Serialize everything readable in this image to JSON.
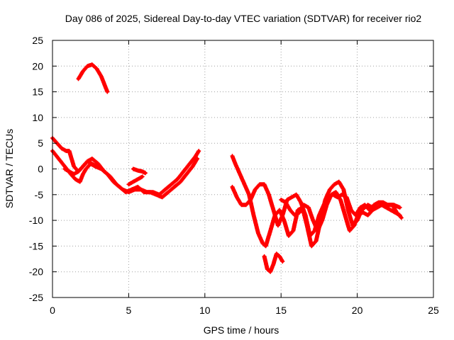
{
  "chart_data": {
    "type": "scatter",
    "title": "Day 086 of 2025, Sidereal Day-to-day VTEC variation (SDTVAR) for receiver rio2",
    "xlabel": "GPS time / hours",
    "ylabel": "SDTVAR / TECUs",
    "xlim": [
      0,
      25
    ],
    "ylim": [
      -25,
      25
    ],
    "xticks": [
      0,
      5,
      10,
      15,
      20,
      25
    ],
    "yticks": [
      -25,
      -20,
      -15,
      -10,
      -5,
      0,
      5,
      10,
      15,
      20,
      25
    ],
    "grid": true,
    "marker": "+",
    "color": "#ff0000",
    "series": [
      {
        "name": "trace-a",
        "x": [
          1.7,
          2.0,
          2.3,
          2.6,
          2.9,
          3.2,
          3.4,
          3.6
        ],
        "y": [
          17.5,
          19.0,
          20.0,
          20.3,
          19.5,
          18.0,
          16.5,
          15.0
        ]
      },
      {
        "name": "trace-b",
        "x": [
          0.0,
          0.3,
          0.6,
          0.9,
          1.1,
          1.4,
          1.7,
          2.0,
          2.3,
          2.6,
          3.0,
          3.4,
          3.8,
          4.2,
          4.6,
          5.0,
          5.4,
          5.8,
          6.2,
          6.6,
          7.0,
          7.4,
          7.8,
          8.2,
          8.6,
          9.0,
          9.4,
          9.6
        ],
        "y": [
          6.0,
          5.0,
          4.0,
          3.5,
          3.5,
          0.5,
          -0.5,
          0.5,
          1.5,
          2.0,
          1.0,
          -0.5,
          -1.5,
          -3.0,
          -4.0,
          -4.5,
          -4.0,
          -4.0,
          -4.5,
          -4.5,
          -5.0,
          -4.0,
          -3.0,
          -2.0,
          -0.5,
          1.0,
          2.5,
          3.5
        ]
      },
      {
        "name": "trace-c",
        "x": [
          0.0,
          0.4,
          0.8,
          1.2,
          1.5,
          1.8,
          2.0,
          2.2,
          2.5,
          2.8,
          3.2,
          3.6,
          4.0,
          4.4,
          4.8,
          5.2,
          5.6,
          6.0,
          6.4,
          6.8,
          7.2,
          7.6,
          8.0,
          8.4,
          8.8,
          9.2,
          9.5
        ],
        "y": [
          3.5,
          2.0,
          0.5,
          -1.0,
          -2.0,
          -2.5,
          -1.0,
          0.0,
          1.0,
          0.5,
          0.0,
          -1.0,
          -2.5,
          -3.5,
          -4.5,
          -4.0,
          -3.5,
          -4.5,
          -4.5,
          -5.0,
          -5.5,
          -4.5,
          -3.5,
          -2.5,
          -1.0,
          0.5,
          2.0
        ]
      },
      {
        "name": "trace-d",
        "x": [
          0.8,
          1.1,
          1.4,
          1.7,
          2.0,
          2.3,
          2.6,
          2.9
        ],
        "y": [
          0.0,
          -0.5,
          -1.0,
          -0.5,
          0.5,
          1.5,
          1.0,
          0.5
        ]
      },
      {
        "name": "trace-e",
        "x": [
          5.0,
          5.3,
          5.6,
          5.9
        ],
        "y": [
          -3.0,
          -2.5,
          -2.0,
          -1.5
        ]
      },
      {
        "name": "trace-f",
        "x": [
          5.3,
          5.6,
          5.9,
          6.1
        ],
        "y": [
          0.0,
          -0.3,
          -0.5,
          -0.8
        ]
      },
      {
        "name": "trace-g",
        "x": [
          11.8,
          12.0,
          12.3,
          12.6,
          12.9,
          13.2,
          13.5,
          13.8,
          14.0,
          14.3,
          14.6,
          14.9,
          15.2,
          15.5,
          15.8,
          16.1,
          16.4,
          16.7,
          17.0,
          17.3,
          17.6,
          17.9,
          18.2,
          18.5,
          18.8,
          19.1,
          19.4,
          19.7,
          20.0,
          20.3,
          20.7,
          21.0,
          21.3,
          21.6,
          22.0,
          22.4,
          22.8
        ],
        "y": [
          2.5,
          1.0,
          -1.0,
          -3.0,
          -5.0,
          -9.0,
          -12.5,
          -14.5,
          -15.0,
          -12.0,
          -9.0,
          -8.0,
          -10.0,
          -13.0,
          -12.0,
          -8.0,
          -7.5,
          -11.0,
          -15.0,
          -14.0,
          -10.0,
          -6.0,
          -4.0,
          -3.0,
          -2.5,
          -4.0,
          -8.0,
          -11.0,
          -10.0,
          -8.0,
          -7.0,
          -7.5,
          -7.5,
          -7.0,
          -7.0,
          -7.0,
          -7.5
        ]
      },
      {
        "name": "trace-h",
        "x": [
          11.8,
          12.1,
          12.4,
          12.7,
          13.0,
          13.3,
          13.6,
          13.9,
          14.2,
          14.5,
          14.8,
          15.1,
          15.4,
          15.7,
          16.0,
          16.3,
          16.6,
          16.9,
          17.2,
          17.5,
          17.8,
          18.1,
          18.4,
          18.7,
          19.0,
          19.3,
          19.6,
          19.9,
          20.2,
          20.5,
          20.8,
          21.1,
          21.4,
          21.7,
          22.0,
          22.3,
          22.6,
          22.9
        ],
        "y": [
          -3.5,
          -5.5,
          -7.0,
          -7.0,
          -6.0,
          -4.0,
          -3.0,
          -3.0,
          -5.0,
          -8.0,
          -11.0,
          -9.0,
          -6.0,
          -5.5,
          -5.0,
          -6.5,
          -9.0,
          -13.0,
          -12.0,
          -9.0,
          -7.0,
          -5.5,
          -5.0,
          -5.5,
          -5.0,
          -5.5,
          -8.0,
          -9.0,
          -7.5,
          -7.0,
          -8.0,
          -7.0,
          -6.5,
          -6.5,
          -7.0,
          -7.0,
          -8.5,
          -9.5
        ]
      },
      {
        "name": "trace-i",
        "x": [
          15.0,
          15.3,
          15.6,
          15.9,
          16.2,
          16.5,
          16.8,
          17.1,
          17.4,
          17.7,
          18.0,
          18.3,
          18.6,
          18.9,
          19.2,
          19.5,
          19.8,
          20.1,
          20.4,
          20.7,
          21.0,
          21.3,
          21.6,
          21.9,
          22.2,
          22.5,
          22.8
        ],
        "y": [
          -6.0,
          -6.5,
          -8.0,
          -9.0,
          -8.5,
          -7.0,
          -7.5,
          -10.0,
          -12.0,
          -10.0,
          -7.0,
          -5.0,
          -4.5,
          -6.0,
          -9.0,
          -12.0,
          -11.0,
          -8.5,
          -8.5,
          -9.0,
          -8.0,
          -7.5,
          -7.0,
          -7.5,
          -8.0,
          -8.5,
          -9.0
        ]
      },
      {
        "name": "trace-j",
        "x": [
          13.9,
          14.1,
          14.3,
          14.5,
          14.7,
          14.9,
          15.1
        ],
        "y": [
          -17.0,
          -19.5,
          -20.0,
          -18.5,
          -16.5,
          -17.0,
          -18.0
        ]
      }
    ]
  }
}
